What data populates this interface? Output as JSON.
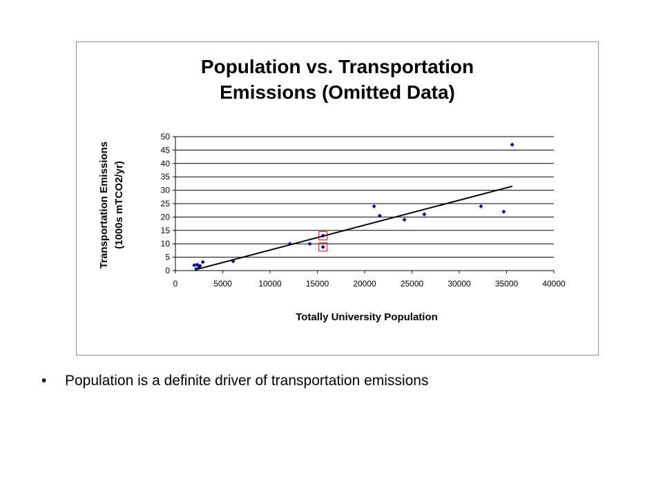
{
  "chart_data": {
    "type": "scatter",
    "title_lines": [
      "Population vs. Transportation",
      "Emissions (Omitted Data)"
    ],
    "xlabel": "Totally University Population",
    "ylabel_lines": [
      "Transportation Emissions",
      "(1000s mTCO2/yr)"
    ],
    "xlim": [
      0,
      40000
    ],
    "ylim": [
      0,
      50
    ],
    "xticks": [
      0,
      5000,
      10000,
      15000,
      20000,
      25000,
      30000,
      35000,
      40000
    ],
    "yticks": [
      0,
      5,
      10,
      15,
      20,
      25,
      30,
      35,
      40,
      45,
      50
    ],
    "grid": "horizontal",
    "point_color": "#000080",
    "points": [
      {
        "x": 2000,
        "y": 2
      },
      {
        "x": 2200,
        "y": 0.5
      },
      {
        "x": 2300,
        "y": 2.2
      },
      {
        "x": 2500,
        "y": 1.2
      },
      {
        "x": 2600,
        "y": 1.8
      },
      {
        "x": 2900,
        "y": 3.2
      },
      {
        "x": 6100,
        "y": 3.5
      },
      {
        "x": 12100,
        "y": 10
      },
      {
        "x": 14200,
        "y": 10
      },
      {
        "x": 15600,
        "y": 13
      },
      {
        "x": 15600,
        "y": 8.8
      },
      {
        "x": 21000,
        "y": 24
      },
      {
        "x": 21600,
        "y": 20.5
      },
      {
        "x": 24200,
        "y": 19
      },
      {
        "x": 26300,
        "y": 21
      },
      {
        "x": 32300,
        "y": 24
      },
      {
        "x": 34700,
        "y": 22
      },
      {
        "x": 35600,
        "y": 47
      }
    ],
    "trendline": {
      "x": [
        2300,
        35600
      ],
      "y": [
        0.5,
        31.5
      ],
      "color": "#000000"
    },
    "highlighted_points": [
      {
        "x": 15600,
        "y": 13
      },
      {
        "x": 15600,
        "y": 8.8
      }
    ],
    "highlight_color": "#cc0000"
  },
  "bullet": {
    "symbol": "•",
    "text": "Population is a definite driver of transportation emissions"
  }
}
